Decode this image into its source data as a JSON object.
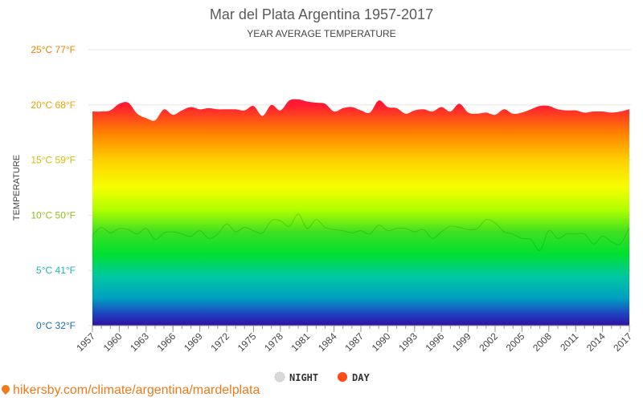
{
  "chart_data": {
    "type": "area",
    "title": "Mar del Plata Argentina 1957-2017",
    "subtitle": "YEAR AVERAGE TEMPERATURE",
    "ylabel": "TEMPERATURE",
    "xlabel": "",
    "ylim": [
      0,
      25
    ],
    "y_ticks": [
      {
        "value": 0,
        "label": "0°C 32°F",
        "color": "#1a6fae"
      },
      {
        "value": 5,
        "label": "5°C 41°F",
        "color": "#1fb5b5"
      },
      {
        "value": 10,
        "label": "10°C 50°F",
        "color": "#8cc21a"
      },
      {
        "value": 15,
        "label": "15°C 59°F",
        "color": "#d4c000"
      },
      {
        "value": 20,
        "label": "20°C 68°F",
        "color": "#e8a400"
      },
      {
        "value": 25,
        "label": "25°C 77°F",
        "color": "#f08000"
      }
    ],
    "x_tick_labels": [
      "1957",
      "1960",
      "1963",
      "1966",
      "1969",
      "1972",
      "1975",
      "1978",
      "1981",
      "1984",
      "1987",
      "1990",
      "1993",
      "1996",
      "1999",
      "2002",
      "2005",
      "2008",
      "2011",
      "2014",
      "2017"
    ],
    "x": [
      1957,
      1958,
      1959,
      1960,
      1961,
      1962,
      1963,
      1964,
      1965,
      1966,
      1967,
      1968,
      1969,
      1970,
      1971,
      1972,
      1973,
      1974,
      1975,
      1976,
      1977,
      1978,
      1979,
      1980,
      1981,
      1982,
      1983,
      1984,
      1985,
      1986,
      1987,
      1988,
      1989,
      1990,
      1991,
      1992,
      1993,
      1994,
      1995,
      1996,
      1997,
      1998,
      1999,
      2000,
      2001,
      2002,
      2003,
      2004,
      2005,
      2006,
      2007,
      2008,
      2009,
      2010,
      2011,
      2012,
      2013,
      2014,
      2015,
      2016,
      2017
    ],
    "series": [
      {
        "name": "DAY",
        "color": "#ff4a1a",
        "values": [
          19.4,
          19.4,
          19.5,
          20.1,
          20.2,
          19.2,
          18.8,
          18.6,
          19.6,
          19.1,
          19.5,
          19.8,
          19.6,
          19.7,
          19.6,
          19.6,
          19.6,
          19.5,
          19.9,
          19.0,
          20.0,
          19.5,
          20.4,
          20.5,
          20.3,
          20.2,
          20.1,
          19.4,
          19.7,
          19.8,
          19.5,
          19.3,
          20.4,
          19.8,
          19.7,
          19.2,
          19.5,
          19.6,
          19.4,
          19.8,
          19.4,
          20.1,
          19.3,
          19.2,
          19.3,
          19.1,
          19.6,
          19.2,
          19.3,
          19.6,
          19.9,
          19.9,
          19.6,
          19.5,
          19.5,
          19.3,
          19.4,
          19.4,
          19.3,
          19.4,
          19.6
        ]
      },
      {
        "name": "NIGHT",
        "color": "#d8d8d8",
        "values": [
          8.2,
          8.9,
          8.4,
          8.8,
          8.7,
          8.3,
          8.8,
          7.8,
          8.4,
          8.5,
          8.3,
          8.1,
          8.6,
          7.9,
          8.3,
          9.2,
          8.5,
          8.9,
          8.6,
          8.4,
          9.5,
          9.5,
          9.0,
          10.1,
          8.8,
          9.6,
          8.9,
          8.7,
          8.6,
          8.4,
          8.6,
          8.3,
          9.1,
          8.6,
          8.8,
          8.8,
          8.5,
          8.7,
          7.9,
          8.5,
          9.0,
          8.9,
          8.7,
          8.8,
          9.6,
          9.3,
          8.5,
          8.3,
          7.9,
          7.8,
          6.8,
          8.6,
          7.9,
          8.3,
          8.3,
          8.3,
          7.4,
          8.1,
          7.6,
          7.4,
          8.9
        ]
      }
    ],
    "legend_position": "bottom-center"
  },
  "footer": {
    "source": "hikersby.com/climate/argentina/mardelplata"
  }
}
